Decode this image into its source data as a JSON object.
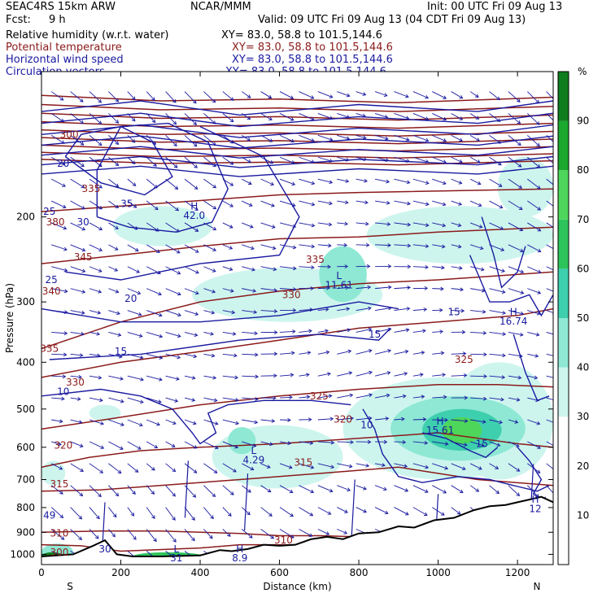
{
  "header": {
    "model": "SEAC4RS 15km ARW",
    "org": "NCAR/MMM",
    "init": "Init: 00 UTC Fri 09 Aug 13",
    "fcst_label": "Fcst:",
    "fcst_value": "9 h",
    "valid": "Valid: 09 UTC Fri 09 Aug 13 (04 CDT Fri 09 Aug 13)",
    "fields": [
      {
        "name": "Relative humidity (w.r.t. water)",
        "xy": "XY=  83.0, 58.8 to 101.5,144.6",
        "color": "#000000"
      },
      {
        "name": "Potential temperature",
        "xy": "XY=  83.0, 58.8 to 101.5,144.6",
        "color": "#8b1a1a"
      },
      {
        "name": "Horizontal wind speed",
        "xy": "XY=  83.0, 58.8 to 101.5,144.6",
        "color": "#1a1aa0"
      },
      {
        "name": "Circulation vectors",
        "xy": "XY=  83.0, 58.8 to 101.5,144.6",
        "color": "#1a1aa0"
      }
    ]
  },
  "chart_data": {
    "type": "heatmap",
    "xlabel": "Distance (km)",
    "ylabel": "Pressure (hPa)",
    "x_ticks": [
      0,
      200,
      400,
      600,
      800,
      1000,
      1200
    ],
    "y_ticks": [
      200,
      300,
      400,
      500,
      600,
      700,
      800,
      900,
      1000
    ],
    "xlim": [
      0,
      1290
    ],
    "ylim": [
      1050,
      100
    ],
    "y_scale": "log",
    "end_labels": {
      "left": "S",
      "right": "N"
    },
    "colorbar": {
      "unit": "%",
      "ticks": [
        10,
        20,
        30,
        40,
        50,
        60,
        70,
        80,
        90
      ],
      "colors": [
        "#ffffff",
        "#ffffff",
        "#ffffff",
        "#cdf5ee",
        "#8ee8d4",
        "#3dcfae",
        "#2ec45c",
        "#4dd65a",
        "#1aa82e",
        "#0e7d1e"
      ]
    },
    "theta_labels": [
      {
        "text": "300",
        "x": 70,
        "p": 135
      },
      {
        "text": "335",
        "x": 125,
        "p": 175
      },
      {
        "text": "380",
        "x": 35,
        "p": 205
      },
      {
        "text": "345",
        "x": 105,
        "p": 242
      },
      {
        "text": "340",
        "x": 25,
        "p": 285
      },
      {
        "text": "335",
        "x": 20,
        "p": 375
      },
      {
        "text": "330",
        "x": 85,
        "p": 440
      },
      {
        "text": "320",
        "x": 55,
        "p": 595
      },
      {
        "text": "315",
        "x": 45,
        "p": 715
      },
      {
        "text": "310",
        "x": 45,
        "p": 905
      },
      {
        "text": "300",
        "x": 45,
        "p": 990
      },
      {
        "text": "335",
        "x": 690,
        "p": 245
      },
      {
        "text": "330",
        "x": 630,
        "p": 290
      },
      {
        "text": "325",
        "x": 1065,
        "p": 395
      },
      {
        "text": "325",
        "x": 700,
        "p": 470
      },
      {
        "text": "320",
        "x": 760,
        "p": 525
      },
      {
        "text": "315",
        "x": 660,
        "p": 645
      },
      {
        "text": "310",
        "x": 610,
        "p": 935
      }
    ],
    "speed_labels": [
      {
        "text": "20",
        "x": 55,
        "p": 155
      },
      {
        "text": "25",
        "x": 20,
        "p": 195
      },
      {
        "text": "30",
        "x": 105,
        "p": 205
      },
      {
        "text": "35",
        "x": 215,
        "p": 188
      },
      {
        "text": "25",
        "x": 25,
        "p": 270
      },
      {
        "text": "20",
        "x": 225,
        "p": 295
      },
      {
        "text": "15",
        "x": 200,
        "p": 380
      },
      {
        "text": "10",
        "x": 55,
        "p": 460
      },
      {
        "text": "10",
        "x": 820,
        "p": 540
      },
      {
        "text": "15",
        "x": 840,
        "p": 350
      },
      {
        "text": "15",
        "x": 1040,
        "p": 315
      },
      {
        "text": "15",
        "x": 1110,
        "p": 590
      },
      {
        "text": "49",
        "x": 20,
        "p": 830
      },
      {
        "text": "30",
        "x": 160,
        "p": 975
      }
    ],
    "extrema": [
      {
        "type": "H",
        "value": "42.0",
        "x": 385,
        "p": 190
      },
      {
        "type": "L",
        "value": "11.61",
        "x": 750,
        "p": 265
      },
      {
        "type": "H",
        "value": "16.74",
        "x": 1190,
        "p": 315
      },
      {
        "type": "H",
        "value": "15.61",
        "x": 1005,
        "p": 530
      },
      {
        "type": "L",
        "value": "4.29",
        "x": 535,
        "p": 610
      },
      {
        "type": "H",
        "value": "12",
        "x": 1245,
        "p": 770
      },
      {
        "type": "L",
        "value": "31",
        "x": 340,
        "p": 975
      },
      {
        "type": "H",
        "value": "8.9",
        "x": 500,
        "p": 975
      }
    ]
  }
}
